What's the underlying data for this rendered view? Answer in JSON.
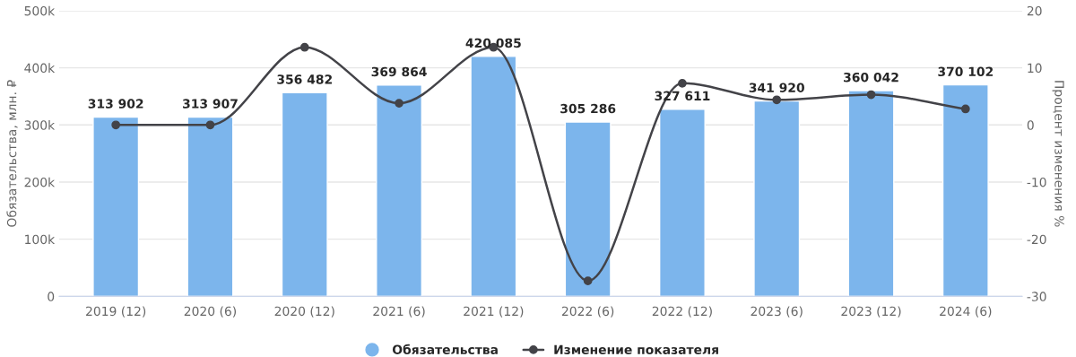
{
  "chart_data": {
    "type": "bar",
    "categories": [
      "2019 (12)",
      "2020 (6)",
      "2020 (12)",
      "2021 (6)",
      "2021 (12)",
      "2022 (6)",
      "2022 (12)",
      "2023 (6)",
      "2023 (12)",
      "2024 (6)"
    ],
    "series": [
      {
        "name": "Обязательства",
        "type": "bar",
        "color": "#7cb5ec",
        "values": [
          313902,
          313907,
          356482,
          369864,
          420085,
          305286,
          327611,
          341920,
          360042,
          370102
        ],
        "value_labels": [
          "313 902",
          "313 907",
          "356 482",
          "369 864",
          "420 085",
          "305 286",
          "327 611",
          "341 920",
          "360 042",
          "370 102"
        ]
      },
      {
        "name": "Изменение показателя",
        "type": "line",
        "axis": "y2",
        "color": "#434348",
        "marker": "circle",
        "values": [
          0,
          0,
          13.6,
          3.8,
          13.6,
          -27.3,
          7.3,
          4.4,
          5.3,
          2.8
        ]
      }
    ],
    "ylabel": "Обязательства, млн. ₽",
    "y2label": "Процент изменения %",
    "ylim": [
      0,
      500000
    ],
    "yticks": [
      0,
      {
        "value": 100000,
        "label": "100k"
      },
      {
        "value": 200000,
        "label": "200k"
      },
      {
        "value": 300000,
        "label": "300k"
      },
      {
        "value": 400000,
        "label": "400k"
      },
      {
        "value": 500000,
        "label": "500k"
      }
    ],
    "y2lim": [
      -30,
      20
    ],
    "y2ticks": [
      -30,
      -20,
      -10,
      0,
      10,
      20
    ],
    "grid": "y",
    "legend": "bottom"
  }
}
